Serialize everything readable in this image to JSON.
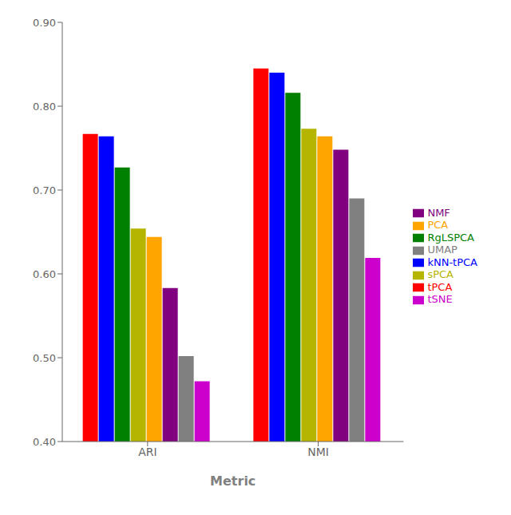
{
  "chart_data": {
    "type": "bar",
    "xlabel": "Metric",
    "categories": [
      "ARI",
      "NMI"
    ],
    "series": [
      {
        "name": "tPCA",
        "color": "#ff0000",
        "values": [
          0.767,
          0.845
        ]
      },
      {
        "name": "kNN-tPCA",
        "color": "#0000ff",
        "values": [
          0.764,
          0.84
        ]
      },
      {
        "name": "RgLSPCA",
        "color": "#008000",
        "values": [
          0.727,
          0.816
        ]
      },
      {
        "name": "sPCA",
        "color": "#b5b500",
        "values": [
          0.654,
          0.773
        ]
      },
      {
        "name": "PCA",
        "color": "#ffa500",
        "values": [
          0.644,
          0.764
        ]
      },
      {
        "name": "NMF",
        "color": "#800080",
        "values": [
          0.583,
          0.748
        ]
      },
      {
        "name": "UMAP",
        "color": "#808080",
        "values": [
          0.502,
          0.69
        ]
      },
      {
        "name": "tSNE",
        "color": "#cc00cc",
        "values": [
          0.472,
          0.619
        ]
      }
    ],
    "ylim": [
      0.4,
      0.9
    ],
    "yticks": [
      {
        "value": 0.4,
        "label": "0.40"
      },
      {
        "value": 0.5,
        "label": "0.50"
      },
      {
        "value": 0.6,
        "label": "0.60"
      },
      {
        "value": 0.7,
        "label": "0.70"
      },
      {
        "value": 0.8,
        "label": "0.80"
      },
      {
        "value": 0.9,
        "label": "0.90"
      }
    ],
    "grid": false,
    "legend": "right"
  }
}
